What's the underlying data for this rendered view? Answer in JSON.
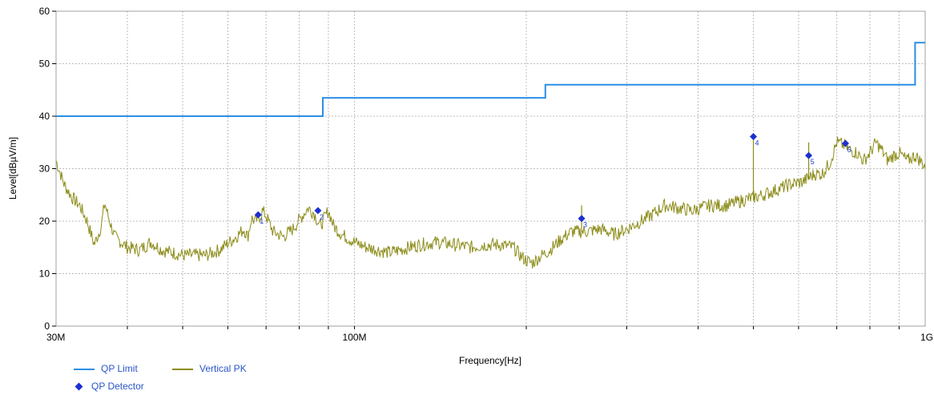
{
  "chart_data": {
    "type": "line",
    "xlabel": "Frequency[Hz]",
    "ylabel": "Level[dBµV/m]",
    "xscale": "log",
    "xlim": [
      30000000,
      1000000000
    ],
    "ylim": [
      0,
      60
    ],
    "yticks": [
      0,
      10,
      20,
      30,
      40,
      50,
      60
    ],
    "xtick_labels": [
      {
        "value": 30000000,
        "label": "30M"
      },
      {
        "value": 100000000,
        "label": "100M"
      },
      {
        "value": 1000000000,
        "label": "1G"
      }
    ],
    "grid": true,
    "legend_position": "bottom-left",
    "colors": {
      "limit": "#2b8fe6",
      "trace": "#8c8c1a",
      "detector": "#1d2fd0"
    },
    "series": [
      {
        "name": "QP Limit",
        "kind": "step",
        "points": [
          [
            30000000,
            40
          ],
          [
            88000000,
            40
          ],
          [
            88000000,
            43.5
          ],
          [
            216000000,
            43.5
          ],
          [
            216000000,
            46
          ],
          [
            960000000,
            46
          ],
          [
            960000000,
            54
          ],
          [
            1000000000,
            54
          ]
        ]
      },
      {
        "name": "Vertical PK",
        "kind": "trace",
        "points": [
          [
            30000000,
            31.5
          ],
          [
            31000000,
            27
          ],
          [
            32000000,
            24.5
          ],
          [
            33000000,
            23
          ],
          [
            34000000,
            20
          ],
          [
            35000000,
            15.5
          ],
          [
            36000000,
            19
          ],
          [
            36500000,
            23.5
          ],
          [
            37000000,
            21
          ],
          [
            38000000,
            17
          ],
          [
            40000000,
            15
          ],
          [
            42000000,
            14.5
          ],
          [
            44000000,
            16
          ],
          [
            46000000,
            14.5
          ],
          [
            48000000,
            14
          ],
          [
            50000000,
            13.5
          ],
          [
            52000000,
            13.5
          ],
          [
            55000000,
            13.5
          ],
          [
            58000000,
            14.5
          ],
          [
            62000000,
            17
          ],
          [
            64000000,
            18.5
          ],
          [
            65000000,
            17
          ],
          [
            66000000,
            20.5
          ],
          [
            67000000,
            20
          ],
          [
            68000000,
            20.5
          ],
          [
            69000000,
            22
          ],
          [
            70000000,
            21
          ],
          [
            72000000,
            18
          ],
          [
            75000000,
            17
          ],
          [
            78000000,
            18.5
          ],
          [
            81000000,
            21
          ],
          [
            83000000,
            22.5
          ],
          [
            85000000,
            21.5
          ],
          [
            87000000,
            19
          ],
          [
            88000000,
            20
          ],
          [
            89000000,
            21
          ],
          [
            90000000,
            22
          ],
          [
            92000000,
            19
          ],
          [
            95000000,
            17.5
          ],
          [
            100000000,
            16
          ],
          [
            105000000,
            15
          ],
          [
            110000000,
            14.5
          ],
          [
            115000000,
            14
          ],
          [
            120000000,
            14.5
          ],
          [
            130000000,
            15.5
          ],
          [
            140000000,
            16
          ],
          [
            150000000,
            15.5
          ],
          [
            160000000,
            15
          ],
          [
            170000000,
            15.5
          ],
          [
            180000000,
            15.5
          ],
          [
            190000000,
            15
          ],
          [
            195000000,
            13.5
          ],
          [
            200000000,
            12.5
          ],
          [
            205000000,
            12
          ],
          [
            210000000,
            13
          ],
          [
            220000000,
            14.5
          ],
          [
            230000000,
            16.5
          ],
          [
            240000000,
            18
          ],
          [
            255000000,
            18
          ],
          [
            270000000,
            18.5
          ],
          [
            285000000,
            17.5
          ],
          [
            300000000,
            18.5
          ],
          [
            330000000,
            21
          ],
          [
            350000000,
            23
          ],
          [
            370000000,
            22.5
          ],
          [
            390000000,
            22
          ],
          [
            420000000,
            23
          ],
          [
            450000000,
            23
          ],
          [
            480000000,
            24
          ],
          [
            500000000,
            24.5
          ],
          [
            520000000,
            25
          ],
          [
            550000000,
            26
          ],
          [
            580000000,
            27
          ],
          [
            610000000,
            27.5
          ],
          [
            640000000,
            29
          ],
          [
            660000000,
            29
          ],
          [
            680000000,
            31
          ],
          [
            700000000,
            35
          ],
          [
            720000000,
            34.5
          ],
          [
            740000000,
            33.5
          ],
          [
            760000000,
            33
          ],
          [
            780000000,
            31.5
          ],
          [
            800000000,
            33
          ],
          [
            820000000,
            35
          ],
          [
            840000000,
            33.5
          ],
          [
            860000000,
            31.5
          ],
          [
            880000000,
            32.5
          ],
          [
            900000000,
            33
          ],
          [
            930000000,
            31.5
          ],
          [
            960000000,
            32.5
          ],
          [
            980000000,
            31.5
          ],
          [
            1000000000,
            30.5
          ]
        ]
      },
      {
        "name": "QP Detector",
        "kind": "markers",
        "points": [
          {
            "label": "1",
            "freq": 67800000,
            "level": 21.2
          },
          {
            "label": "2",
            "freq": 86300000,
            "level": 22.0
          },
          {
            "label": "3",
            "freq": 250000000,
            "level": 20.5
          },
          {
            "label": "4",
            "freq": 500000000,
            "level": 36.1
          },
          {
            "label": "5",
            "freq": 625000000,
            "level": 32.5
          },
          {
            "label": "6",
            "freq": 725000000,
            "level": 34.8
          }
        ],
        "spikes": [
          {
            "freq": 250000000,
            "top": 23,
            "base": 18
          },
          {
            "freq": 500000000,
            "top": 36,
            "base": 24
          },
          {
            "freq": 625000000,
            "top": 35,
            "base": 28
          }
        ]
      }
    ]
  }
}
